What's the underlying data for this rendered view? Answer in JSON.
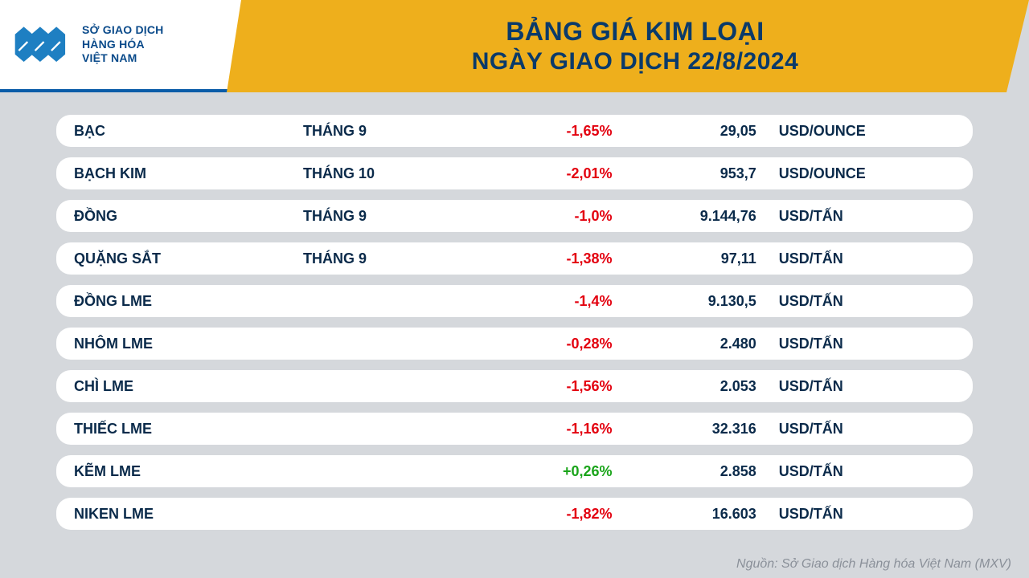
{
  "brand": {
    "line1": "SỞ GIAO DỊCH",
    "line2": "HÀNG HÓA",
    "line3": "VIỆT NAM",
    "logo_color": "#1e7fc2",
    "logo_accent": "#0a4a8a"
  },
  "header": {
    "title_line1": "BẢNG GIÁ KIM LOẠI",
    "title_line2": "NGÀY GIAO DỊCH 22/8/2024",
    "banner_color": "#eeaf1c",
    "title_text_color": "#0a3a6a"
  },
  "table": {
    "row_bg": "#ffffff",
    "text_color": "#0a2a4a",
    "neg_color": "#e3000f",
    "pos_color": "#1aa41a",
    "rows": [
      {
        "name": "BẠC",
        "month": "THÁNG 9",
        "pct": "-1,65%",
        "dir": "neg",
        "price": "29,05",
        "unit": "USD/OUNCE"
      },
      {
        "name": "BẠCH KIM",
        "month": "THÁNG 10",
        "pct": "-2,01%",
        "dir": "neg",
        "price": "953,7",
        "unit": "USD/OUNCE"
      },
      {
        "name": "ĐỒNG",
        "month": "THÁNG 9",
        "pct": "-1,0%",
        "dir": "neg",
        "price": "9.144,76",
        "unit": "USD/TẤN"
      },
      {
        "name": "QUẶNG SẮT",
        "month": "THÁNG 9",
        "pct": "-1,38%",
        "dir": "neg",
        "price": "97,11",
        "unit": "USD/TẤN"
      },
      {
        "name": "ĐỒNG LME",
        "month": "",
        "pct": "-1,4%",
        "dir": "neg",
        "price": "9.130,5",
        "unit": "USD/TẤN"
      },
      {
        "name": "NHÔM LME",
        "month": "",
        "pct": "-0,28%",
        "dir": "neg",
        "price": "2.480",
        "unit": "USD/TẤN"
      },
      {
        "name": "CHÌ LME",
        "month": "",
        "pct": "-1,56%",
        "dir": "neg",
        "price": "2.053",
        "unit": "USD/TẤN"
      },
      {
        "name": "THIẾC LME",
        "month": "",
        "pct": "-1,16%",
        "dir": "neg",
        "price": "32.316",
        "unit": "USD/TẤN"
      },
      {
        "name": "KẼM LME",
        "month": "",
        "pct": "+0,26%",
        "dir": "pos",
        "price": "2.858",
        "unit": "USD/TẤN"
      },
      {
        "name": "NIKEN LME",
        "month": "",
        "pct": "-1,82%",
        "dir": "neg",
        "price": "16.603",
        "unit": "USD/TẤN"
      }
    ]
  },
  "source": "Nguồn: Sở Giao dịch Hàng hóa Việt Nam (MXV)"
}
